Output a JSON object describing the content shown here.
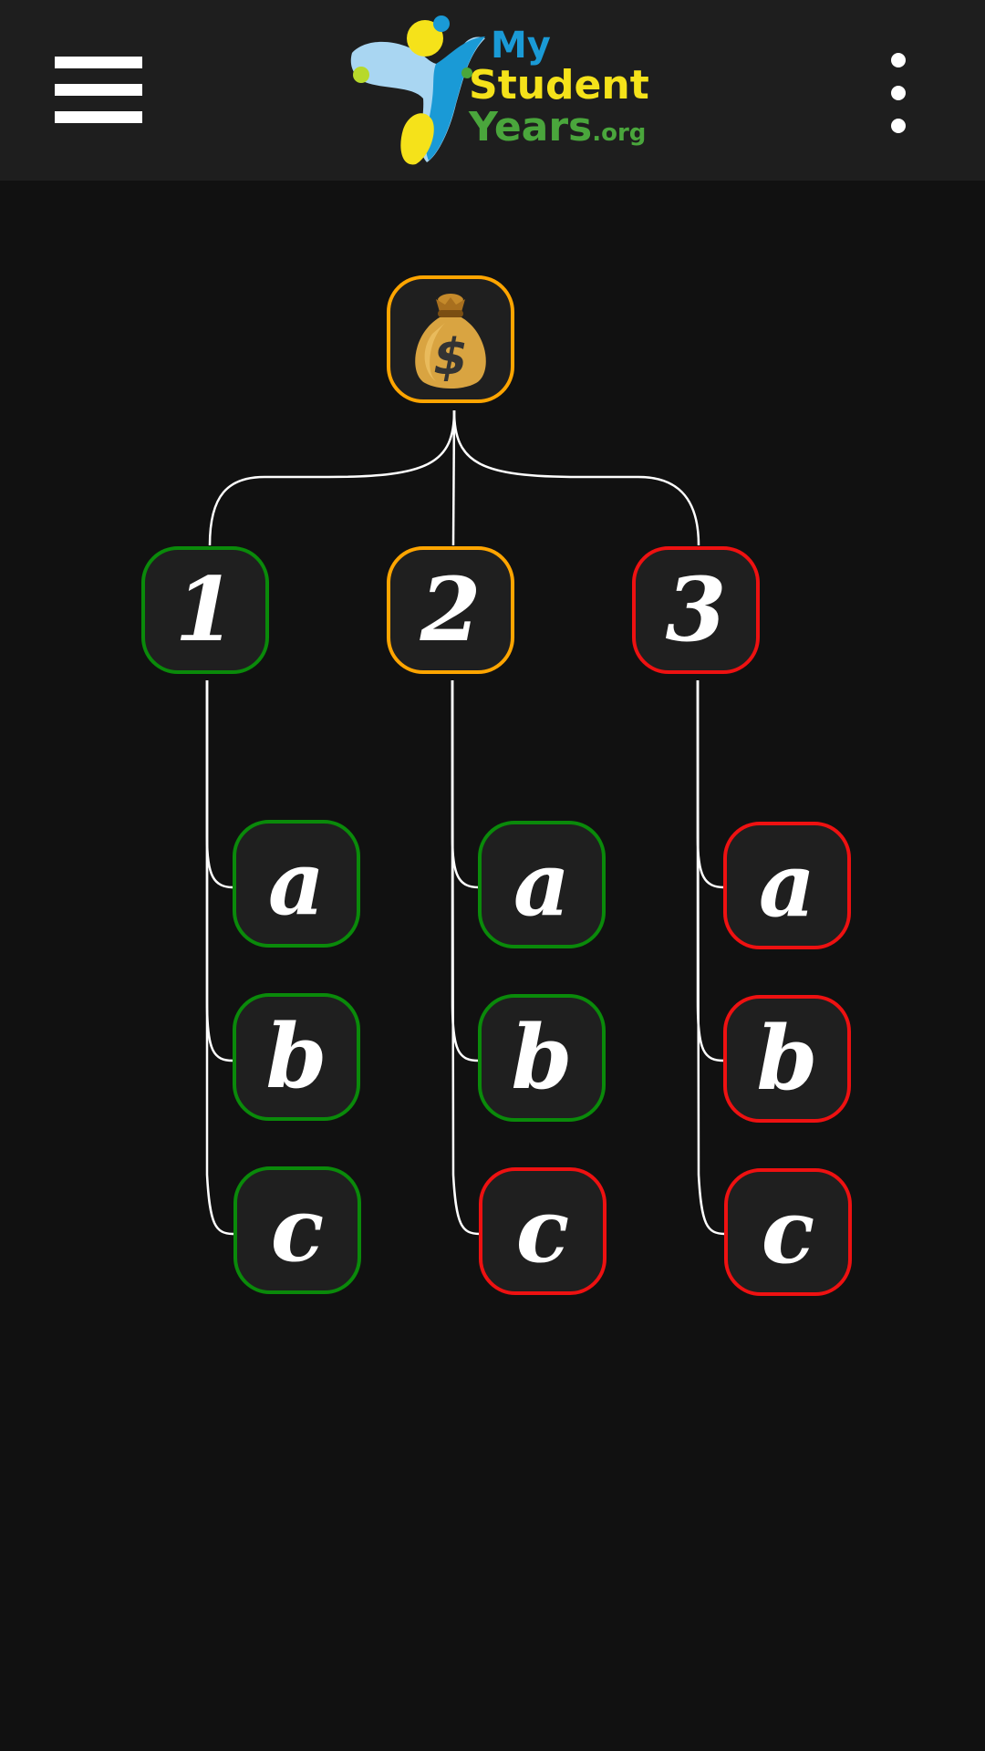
{
  "header": {
    "logo": {
      "line1": "My",
      "line2": "Student",
      "line3_main": "Years",
      "line3_suffix": ".org"
    },
    "menu_icon": "hamburger-menu-icon",
    "more_icon": "vertical-dots-icon"
  },
  "colors": {
    "background": "#111111",
    "header": "#1e1e1e",
    "node_fill": "#1f1f1f",
    "green": "#0a8a0a",
    "orange": "#ffa500",
    "red": "#ee1111",
    "connector": "#ffffff"
  },
  "tree": {
    "root": {
      "icon": "money-bag-icon",
      "status": "orange"
    },
    "branches": [
      {
        "label": "1",
        "status": "green",
        "children": [
          {
            "label": "a",
            "status": "green"
          },
          {
            "label": "b",
            "status": "green"
          },
          {
            "label": "c",
            "status": "green"
          }
        ]
      },
      {
        "label": "2",
        "status": "orange",
        "children": [
          {
            "label": "a",
            "status": "green"
          },
          {
            "label": "b",
            "status": "green"
          },
          {
            "label": "c",
            "status": "red"
          }
        ]
      },
      {
        "label": "3",
        "status": "red",
        "children": [
          {
            "label": "a",
            "status": "red"
          },
          {
            "label": "b",
            "status": "red"
          },
          {
            "label": "c",
            "status": "red"
          }
        ]
      }
    ]
  }
}
